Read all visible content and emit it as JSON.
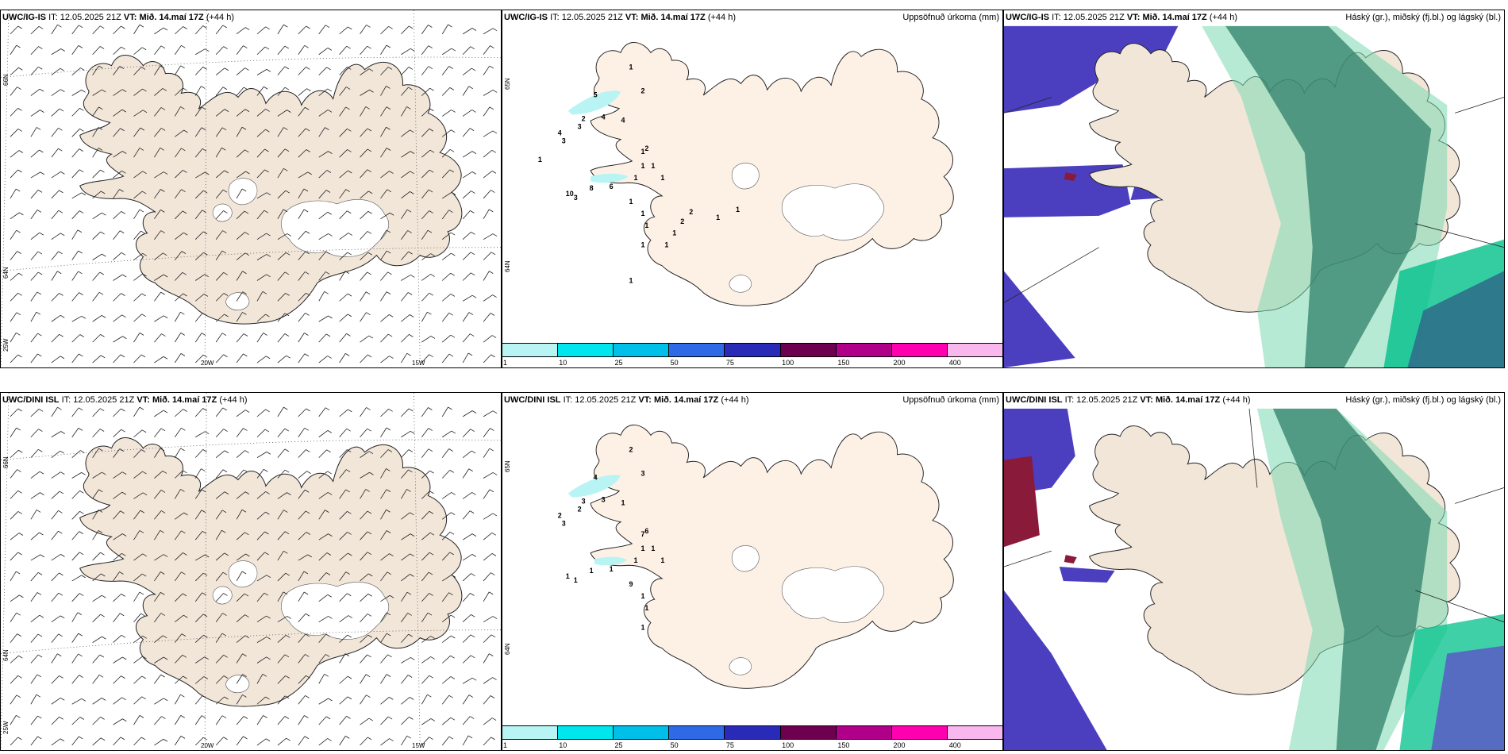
{
  "rows": [
    {
      "model": "UWC/IG-IS",
      "it_label": "IT:",
      "it_value": "12.05.2025 21Z",
      "vt_label": "VT:",
      "vt_value": "Mið. 14.maí 17Z",
      "lead": "(+44 h)"
    },
    {
      "model": "UWC/DINI ISL",
      "it_label": "IT:",
      "it_value": "12.05.2025 21Z",
      "vt_label": "VT:",
      "vt_value": "Mið. 14.maí 17Z",
      "lead": "(+44 h)"
    }
  ],
  "precip_title": "Uppsöfnuð úrkoma (mm)",
  "cloud_title": "Háský (gr.), miðský (fj.bl.) og lágský (bl.)",
  "grid_labels": {
    "lat_66": "66N",
    "lat_64": "64N",
    "lat_65": "65N",
    "lat_25": "25W",
    "lon_20": "20W",
    "lon_15": "15W"
  },
  "colorbar": {
    "ticks": [
      "1",
      "10",
      "25",
      "50",
      "75",
      "100",
      "150",
      "200",
      "400"
    ],
    "colors": [
      "#b8f4f4",
      "#00e6ef",
      "#00bfe8",
      "#2f6ae6",
      "#2a2ab8",
      "#6e0050",
      "#b0008a",
      "#ff00b0",
      "#f8b8ee"
    ]
  },
  "precip_labels_top": [
    "1",
    "2",
    "5",
    "2",
    "4",
    "3",
    "3",
    "4",
    "4",
    "3",
    "1",
    "1",
    "2",
    "1",
    "1",
    "10",
    "8",
    "6",
    "1",
    "1",
    "1",
    "1",
    "1",
    "1",
    "1",
    "2",
    "2",
    "1",
    "1",
    "1",
    "1"
  ],
  "precip_labels_bottom": [
    "2",
    "3",
    "4",
    "3",
    "2",
    "2",
    "3",
    "3",
    "1",
    "1",
    "9",
    "7",
    "6",
    "1",
    "1",
    "1",
    "1",
    "1",
    "1",
    "1",
    "1",
    "1",
    "1"
  ],
  "colors": {
    "land": "#f2e6d9",
    "land_precip": "#fdf1e6",
    "high_cloud": "#2f7f6a",
    "mid_cloud": "#00c08a",
    "low_cloud": "#4b3fbf",
    "dark_red": "#8a1a3a"
  }
}
